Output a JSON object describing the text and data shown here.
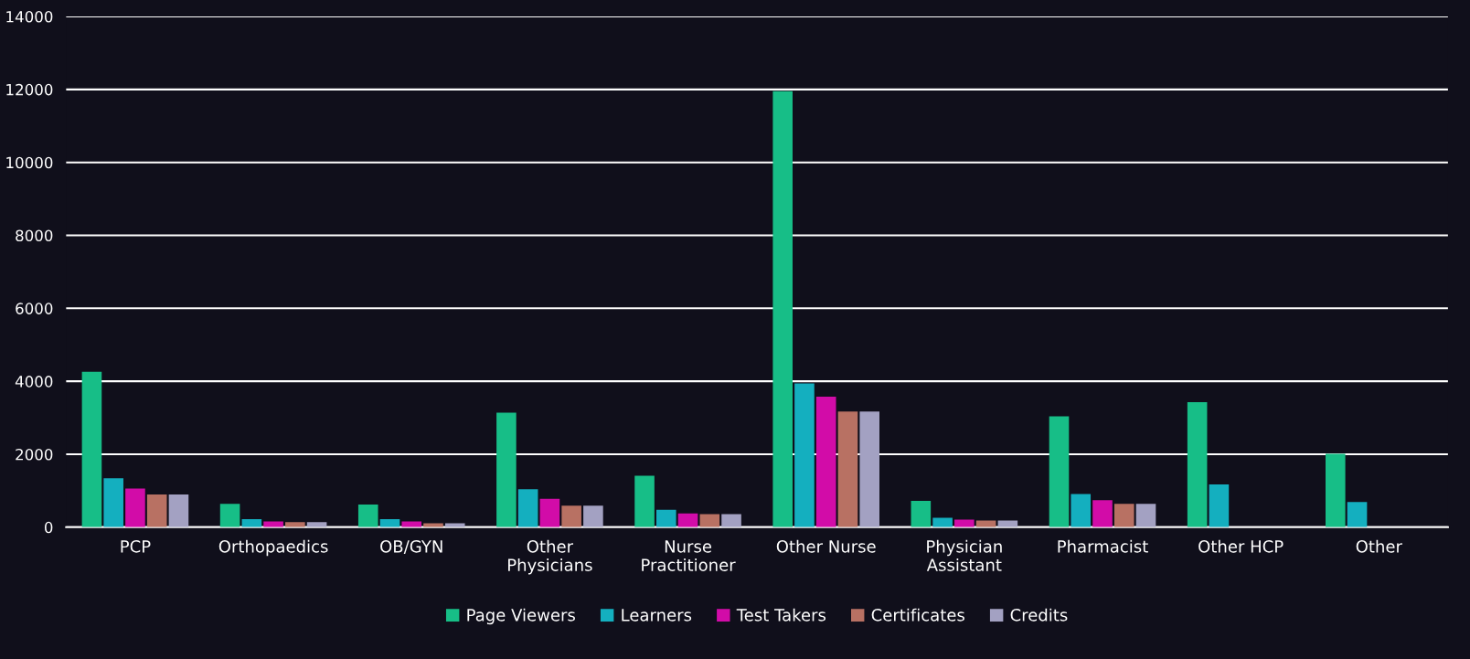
{
  "chart_data": {
    "type": "bar",
    "categories": [
      "PCP",
      "Orthopaedics",
      "OB/GYN",
      "Other\nPhysicians",
      "Nurse\nPractitioner",
      "Other Nurse",
      "Physician\nAssistant",
      "Pharmacist",
      "Other HCP",
      "Other"
    ],
    "series": [
      {
        "name": "Page Viewers",
        "color": "#17be87",
        "values": [
          4260,
          640,
          620,
          3140,
          1410,
          11950,
          720,
          3040,
          3430,
          2010
        ]
      },
      {
        "name": "Learners",
        "color": "#14afbf",
        "values": [
          1340,
          220,
          220,
          1040,
          480,
          3940,
          260,
          910,
          1170,
          690
        ]
      },
      {
        "name": "Test Takers",
        "color": "#d20ca8",
        "values": [
          1060,
          160,
          160,
          780,
          380,
          3580,
          210,
          740,
          null,
          null
        ]
      },
      {
        "name": "Certificates",
        "color": "#b87163",
        "values": [
          900,
          140,
          110,
          590,
          360,
          3170,
          180,
          640,
          null,
          null
        ]
      },
      {
        "name": "Credits",
        "color": "#a3a1c2",
        "values": [
          900,
          140,
          110,
          590,
          360,
          3170,
          180,
          640,
          null,
          null
        ]
      }
    ],
    "ylim": [
      0,
      14000
    ],
    "yticks": [
      0,
      2000,
      4000,
      6000,
      8000,
      10000,
      12000,
      14000
    ],
    "grid": "y",
    "legend": "bottom"
  }
}
